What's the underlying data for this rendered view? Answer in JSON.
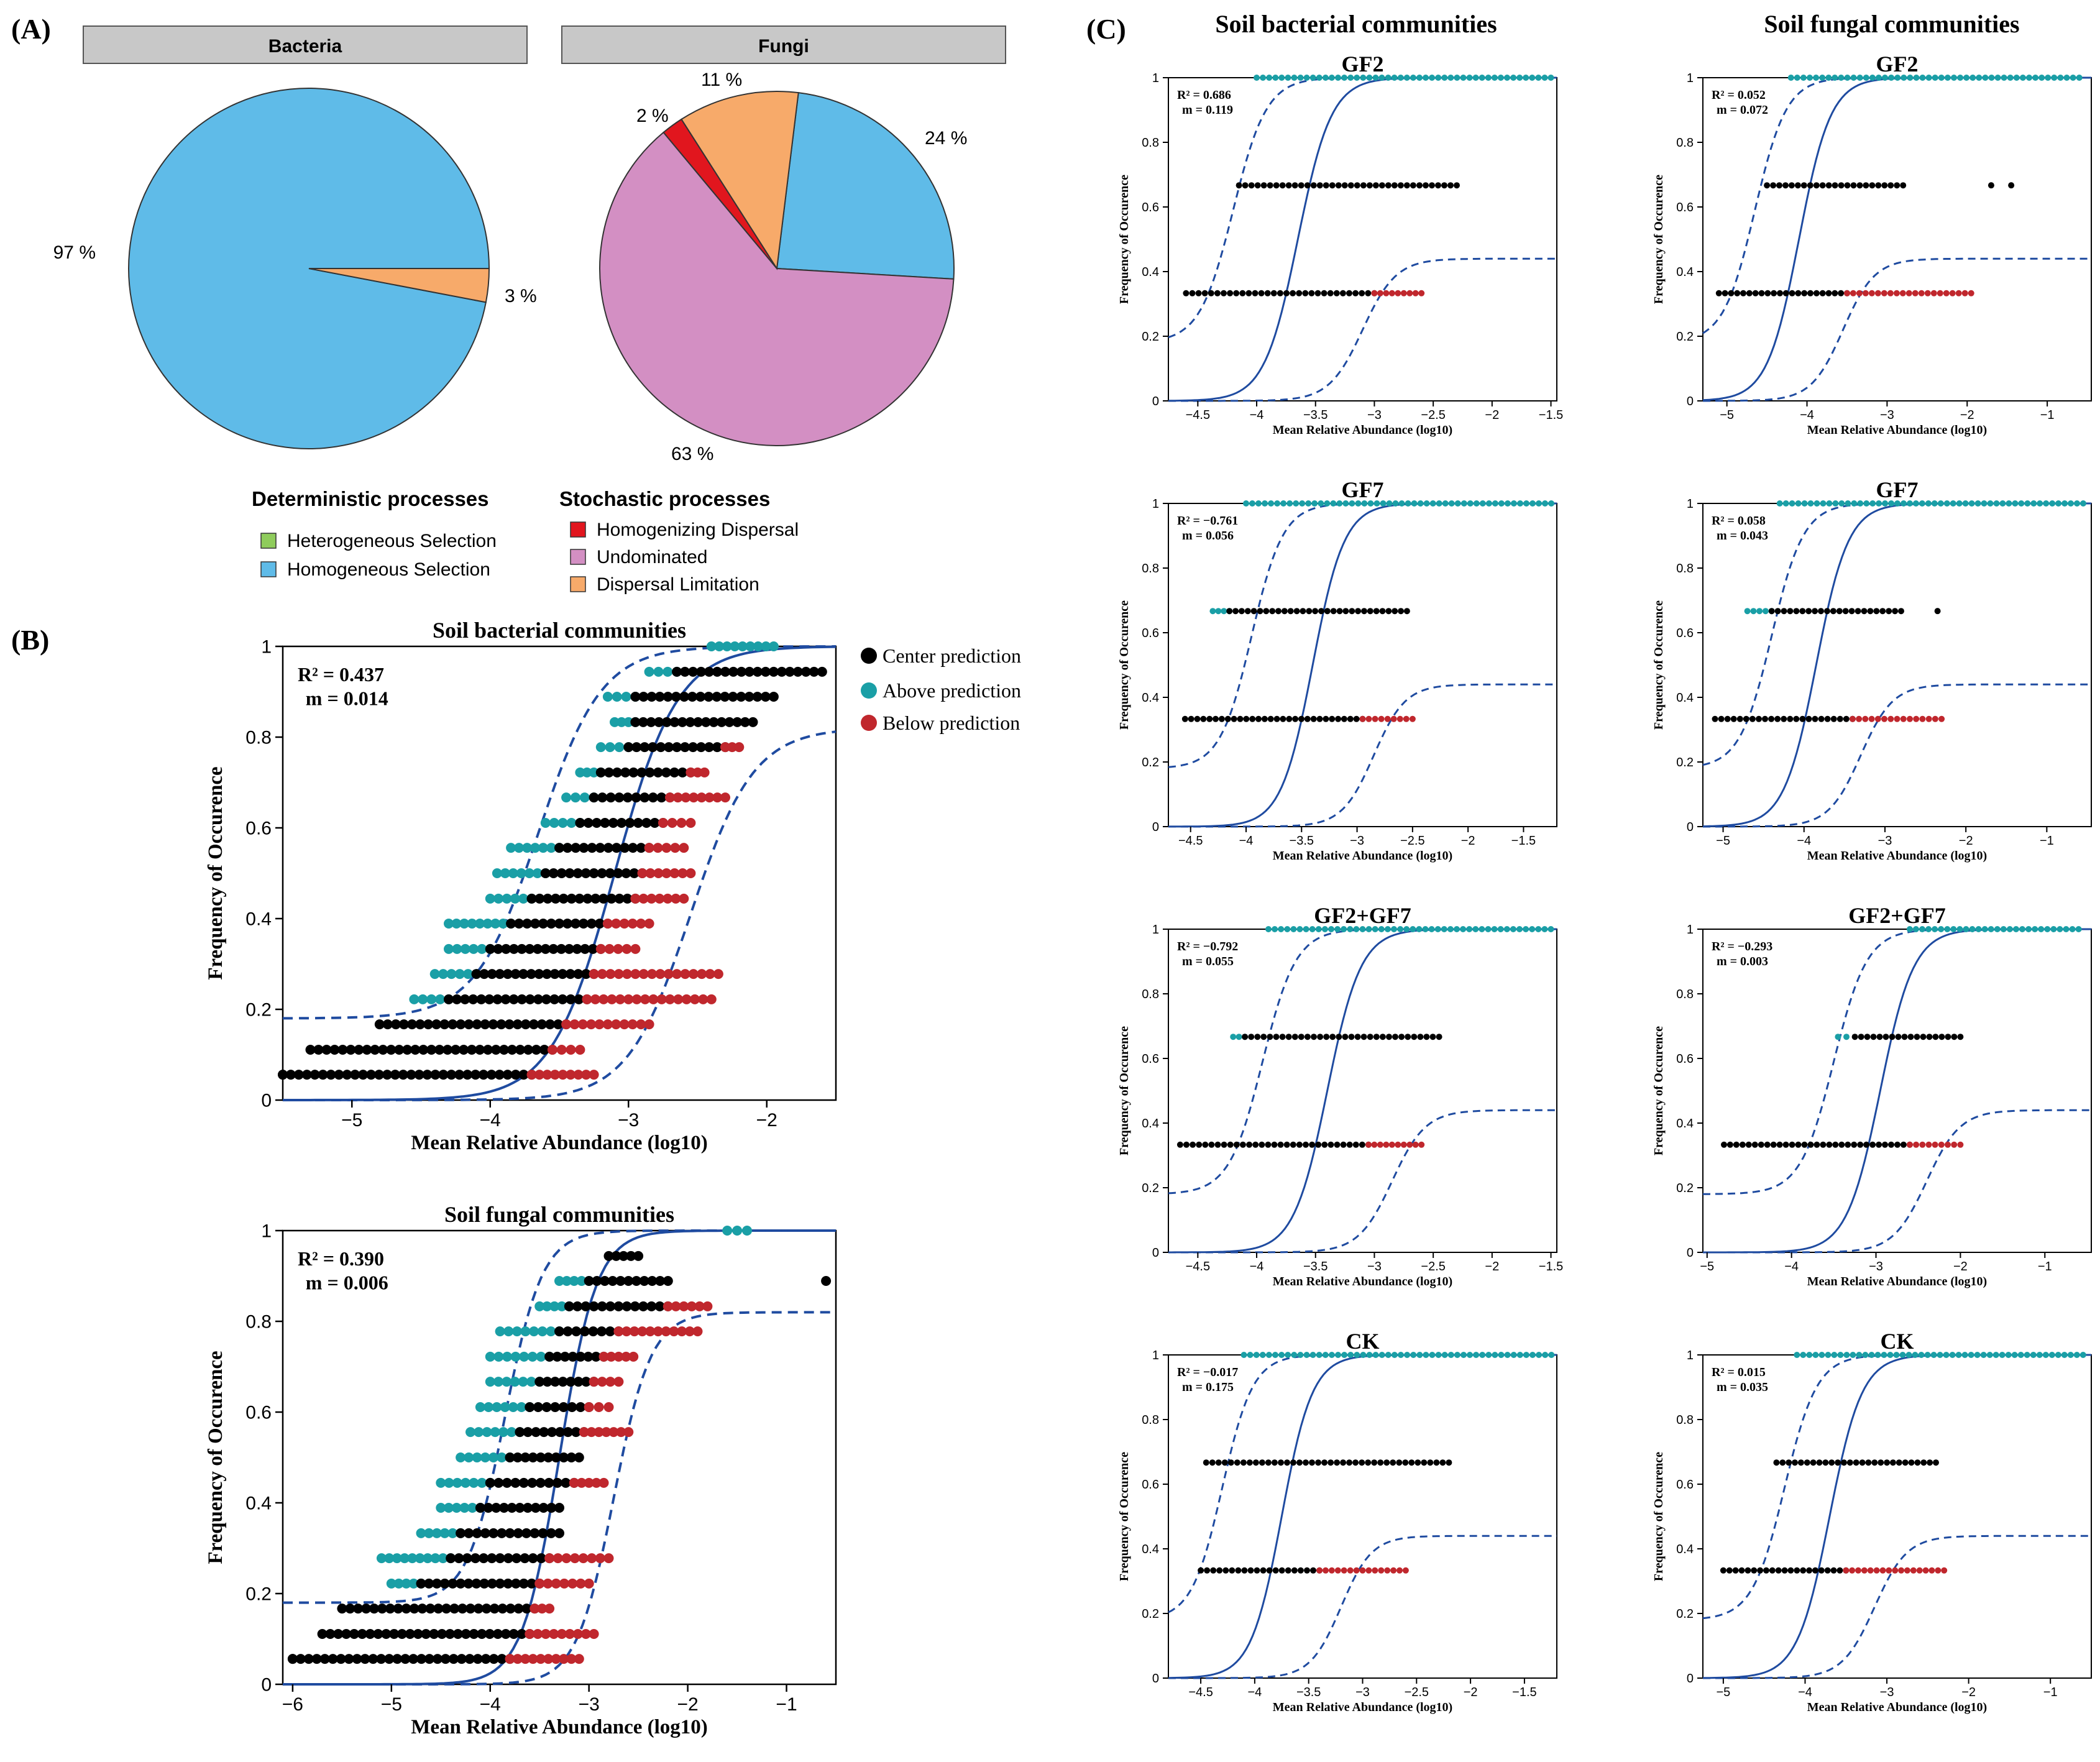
{
  "panel_labels": {
    "a": "(A)",
    "b": "(B)",
    "c": "(C)"
  },
  "pies": {
    "bacteria": {
      "title": "Bacteria",
      "label_97": "97 %",
      "label_3": "3 %"
    },
    "fungi": {
      "title": "Fungi",
      "label_24": "24 %",
      "label_63": "63 %",
      "label_2": "2 %",
      "label_11": "11 %"
    }
  },
  "legend_a": {
    "det_title": "Deterministic processes",
    "sto_title": "Stochastic processes",
    "items": {
      "heterogeneous": "Heterogeneous Selection",
      "homogeneous": "Homogeneous Selection",
      "homogenizing": "Homogenizing Dispersal",
      "undominated": "Undominated",
      "dispersal": "Dispersal Limitation"
    }
  },
  "legend_b": {
    "center": "Center prediction",
    "above": "Above prediction",
    "below": "Below prediction"
  },
  "column_titles": {
    "bacteria": "Soil bacterial communities",
    "fungi": "Soil fungal communities"
  },
  "colors": {
    "homogeneous": "#5fbbe8",
    "heterogeneous": "#8fcc5c",
    "dispersal": "#f7aa6a",
    "undominated": "#d38fc3",
    "homogenizing": "#e1161e",
    "center": "#000000",
    "above": "#1a9fa6",
    "below": "#c0272d",
    "curve": "#1f4ba0",
    "header_gray": "#c8c8c8"
  },
  "chart_data": [
    {
      "id": "pie-bacteria",
      "type": "pie",
      "title": "Bacteria",
      "slices": [
        {
          "label": "Homogeneous Selection",
          "value": 97
        },
        {
          "label": "Dispersal Limitation",
          "value": 3
        }
      ]
    },
    {
      "id": "pie-fungi",
      "type": "pie",
      "title": "Fungi",
      "slices": [
        {
          "label": "Homogeneous Selection",
          "value": 24
        },
        {
          "label": "Undominated",
          "value": 63
        },
        {
          "label": "Homogenizing Dispersal",
          "value": 2
        },
        {
          "label": "Dispersal Limitation",
          "value": 11
        }
      ]
    },
    {
      "id": "b-bac",
      "type": "scatter",
      "title": "Soil bacterial communities",
      "xlabel": "Mean Relative Abundance (log10)",
      "ylabel": "Frequency of Occurence",
      "xlim": [
        -5.5,
        -1.5
      ],
      "ylim": [
        0,
        1
      ],
      "xticks": [
        -5,
        -4,
        -3,
        -2
      ],
      "yticks": [
        0,
        0.2,
        0.4,
        0.6,
        0.8,
        1
      ],
      "r2": "R² = 0.437",
      "m": "m = 0.014",
      "fit": {
        "mid": -3.1,
        "k": 2.0,
        "lower_cap": 0.82
      },
      "bands": [
        {
          "y": 0.056,
          "c": [
            -5.5,
            -3.7
          ],
          "below": [
            -3.7,
            -3.25
          ],
          "sparse": [
            -5.5
          ]
        },
        {
          "y": 0.111,
          "c": [
            -5.3,
            -3.55
          ],
          "below": [
            -3.55,
            -3.35
          ]
        },
        {
          "y": 0.167,
          "c": [
            -4.8,
            -3.45
          ],
          "below": [
            -3.45,
            -2.85
          ]
        },
        {
          "y": 0.222,
          "a": [
            -4.55,
            -4.3
          ],
          "c": [
            -4.3,
            -3.3
          ],
          "below": [
            -3.3,
            -2.4
          ]
        },
        {
          "y": 0.278,
          "a": [
            -4.4,
            -4.1
          ],
          "c": [
            -4.1,
            -3.25
          ],
          "below": [
            -3.25,
            -2.35
          ]
        },
        {
          "y": 0.333,
          "a": [
            -4.3,
            -4.0
          ],
          "c": [
            -4.0,
            -3.2
          ],
          "below": [
            -3.2,
            -2.95
          ]
        },
        {
          "y": 0.389,
          "a": [
            -4.3,
            -3.85
          ],
          "c": [
            -3.85,
            -3.15
          ],
          "below": [
            -3.15,
            -2.85
          ]
        },
        {
          "y": 0.444,
          "a": [
            -4.0,
            -3.7
          ],
          "c": [
            -3.7,
            -2.95
          ],
          "below": [
            -2.95,
            -2.6
          ]
        },
        {
          "y": 0.5,
          "a": [
            -3.95,
            -3.6
          ],
          "c": [
            -3.6,
            -2.9
          ],
          "below": [
            -2.9,
            -2.55
          ]
        },
        {
          "y": 0.556,
          "a": [
            -3.85,
            -3.5
          ],
          "c": [
            -3.5,
            -2.85
          ],
          "below": [
            -2.85,
            -2.6
          ]
        },
        {
          "y": 0.611,
          "a": [
            -3.6,
            -3.35
          ],
          "c": [
            -3.35,
            -2.75
          ],
          "below": [
            -2.75,
            -2.55
          ]
        },
        {
          "y": 0.667,
          "a": [
            -3.45,
            -3.25
          ],
          "c": [
            -3.25,
            -2.7
          ],
          "below": [
            -2.7,
            -2.3
          ]
        },
        {
          "y": 0.722,
          "a": [
            -3.35,
            -3.2
          ],
          "c": [
            -3.2,
            -2.55
          ],
          "below": [
            -2.55,
            -2.45
          ]
        },
        {
          "y": 0.778,
          "a": [
            -3.2,
            -3.0
          ],
          "c": [
            -3.0,
            -2.3
          ],
          "below": [
            -2.3,
            -2.2
          ]
        },
        {
          "y": 0.833,
          "a": [
            -3.1,
            -2.95
          ],
          "c": [
            -2.95,
            -2.1
          ]
        },
        {
          "y": 0.889,
          "a": [
            -3.15,
            -2.95
          ],
          "c": [
            -2.95,
            -1.95
          ]
        },
        {
          "y": 0.944,
          "a": [
            -2.85,
            -2.65
          ],
          "c": [
            -2.65,
            -1.6
          ]
        },
        {
          "y": 1.0,
          "a": [
            -2.4,
            -1.95
          ]
        }
      ]
    },
    {
      "id": "b-fun",
      "type": "scatter",
      "title": "Soil fungal communities",
      "xlabel": "Mean Relative Abundance (log10)",
      "ylabel": "Frequency of Occurence",
      "xlim": [
        -6.1,
        -0.5
      ],
      "ylim": [
        0,
        1
      ],
      "xticks": [
        -6,
        -5,
        -4,
        -3,
        -2,
        -1
      ],
      "yticks": [
        0,
        0.2,
        0.4,
        0.6,
        0.8,
        1
      ],
      "r2": "R² = 0.390",
      "m": "m = 0.006",
      "fit": {
        "mid": -3.3,
        "k": 2.4,
        "lower_cap": 0.82
      },
      "bands": [
        {
          "y": 0.056,
          "c": [
            -6.0,
            -3.8
          ],
          "below": [
            -3.8,
            -3.1
          ],
          "sparse": [
            -6.0
          ]
        },
        {
          "y": 0.111,
          "c": [
            -5.7,
            -3.6
          ],
          "below": [
            -3.6,
            -2.95
          ]
        },
        {
          "y": 0.167,
          "c": [
            -5.5,
            -3.55
          ],
          "below": [
            -3.55,
            -3.4
          ]
        },
        {
          "y": 0.222,
          "a": [
            -5.0,
            -4.7
          ],
          "c": [
            -4.7,
            -3.5
          ],
          "below": [
            -3.5,
            -3.0
          ]
        },
        {
          "y": 0.278,
          "a": [
            -5.1,
            -4.4
          ],
          "c": [
            -4.4,
            -3.4
          ],
          "below": [
            -3.4,
            -2.8
          ]
        },
        {
          "y": 0.333,
          "a": [
            -4.7,
            -4.3
          ],
          "c": [
            -4.3,
            -3.3
          ]
        },
        {
          "y": 0.389,
          "a": [
            -4.5,
            -4.1
          ],
          "c": [
            -4.1,
            -3.3
          ]
        },
        {
          "y": 0.444,
          "a": [
            -4.5,
            -4.0
          ],
          "c": [
            -4.0,
            -3.15
          ],
          "below": [
            -3.15,
            -2.85
          ]
        },
        {
          "y": 0.5,
          "a": [
            -4.3,
            -3.8
          ],
          "c": [
            -3.8,
            -3.1
          ]
        },
        {
          "y": 0.556,
          "a": [
            -4.2,
            -3.7
          ],
          "c": [
            -3.7,
            -3.05
          ],
          "below": [
            -3.05,
            -2.6
          ]
        },
        {
          "y": 0.611,
          "a": [
            -4.1,
            -3.6
          ],
          "c": [
            -3.6,
            -3.0
          ],
          "below": [
            -3.0,
            -2.8
          ]
        },
        {
          "y": 0.667,
          "a": [
            -4.0,
            -3.5
          ],
          "c": [
            -3.5,
            -2.95
          ],
          "below": [
            -2.95,
            -2.7
          ]
        },
        {
          "y": 0.722,
          "a": [
            -4.0,
            -3.4
          ],
          "c": [
            -3.4,
            -2.85
          ],
          "below": [
            -2.85,
            -2.55
          ]
        },
        {
          "y": 0.778,
          "a": [
            -3.9,
            -3.3
          ],
          "c": [
            -3.3,
            -2.7
          ],
          "below": [
            -2.7,
            -1.9
          ]
        },
        {
          "y": 0.833,
          "a": [
            -3.5,
            -3.2
          ],
          "c": [
            -3.2,
            -2.2
          ],
          "below": [
            -2.2,
            -1.8
          ]
        },
        {
          "y": 0.889,
          "a": [
            -3.3,
            -3.0
          ],
          "c": [
            -3.0,
            -2.2
          ],
          "sparse": [
            -0.6
          ]
        },
        {
          "y": 0.944,
          "c": [
            -2.8,
            -2.5
          ]
        },
        {
          "y": 1.0,
          "a": [
            -1.6,
            -1.4
          ]
        }
      ]
    },
    {
      "id": "c-bac-gf2",
      "type": "scatter",
      "title": "GF2",
      "xlabel": "Mean Relative Abundance (log10)",
      "ylabel": "Frequency of Occurence",
      "xlim": [
        -4.75,
        -1.45
      ],
      "ylim": [
        0,
        1
      ],
      "xticks": [
        -4.5,
        -4,
        -3.5,
        -3,
        -2.5,
        -2,
        -1.5
      ],
      "yticks": [
        0,
        0.2,
        0.4,
        0.6,
        0.8,
        1
      ],
      "r2": "R² =  0.686",
      "m": "m = 0.119",
      "fit": {
        "mid": -3.65,
        "k": 3.2,
        "lower_cap": 0.44
      },
      "bands": [
        {
          "y": 0.333,
          "c": [
            -4.6,
            -3.0
          ],
          "below": [
            -3.0,
            -2.6
          ]
        },
        {
          "y": 0.667,
          "c": [
            -4.15,
            -2.3
          ]
        },
        {
          "y": 1.0,
          "a": [
            -4.0,
            -1.5
          ]
        }
      ]
    },
    {
      "id": "c-fun-gf2",
      "type": "scatter",
      "title": "GF2",
      "xlabel": "Mean Relative Abundance (log10)",
      "ylabel": "Frequency of Occurence",
      "xlim": [
        -5.3,
        -0.45
      ],
      "ylim": [
        0,
        1
      ],
      "xticks": [
        -5,
        -4,
        -3,
        -2,
        -1
      ],
      "yticks": [
        0,
        0.2,
        0.4,
        0.6,
        0.8,
        1
      ],
      "r2": "R² = 0.052",
      "m": "m = 0.072",
      "fit": {
        "mid": -4.1,
        "k": 2.3,
        "lower_cap": 0.44
      },
      "bands": [
        {
          "y": 0.333,
          "c": [
            -5.1,
            -3.5
          ],
          "below": [
            -3.5,
            -1.95
          ]
        },
        {
          "y": 0.667,
          "c": [
            -4.5,
            -2.8
          ],
          "sparse": [
            -1.7,
            -1.45
          ]
        },
        {
          "y": 1.0,
          "a": [
            -4.2,
            -0.6
          ]
        }
      ]
    },
    {
      "id": "c-bac-gf7",
      "type": "scatter",
      "title": "GF7",
      "xlabel": "Mean Relative Abundance (log10)",
      "ylabel": "Frequency of Occurence",
      "xlim": [
        -4.7,
        -1.2
      ],
      "ylim": [
        0,
        1
      ],
      "xticks": [
        -4.5,
        -4,
        -3.5,
        -3,
        -2.5,
        -2,
        -1.5
      ],
      "yticks": [
        0,
        0.2,
        0.4,
        0.6,
        0.8,
        1
      ],
      "r2": "R² = −0.761",
      "m": "m = 0.056",
      "fit": {
        "mid": -3.4,
        "k": 3.2,
        "lower_cap": 0.44
      },
      "bands": [
        {
          "y": 0.333,
          "c": [
            -4.55,
            -2.95
          ],
          "below": [
            -2.95,
            -2.5
          ]
        },
        {
          "y": 0.667,
          "a": [
            -4.3,
            -4.15
          ],
          "c": [
            -4.15,
            -2.55
          ]
        },
        {
          "y": 1.0,
          "a": [
            -4.0,
            -1.25
          ]
        }
      ]
    },
    {
      "id": "c-fun-gf7",
      "type": "scatter",
      "title": "GF7",
      "xlabel": "Mean Relative Abundance (log10)",
      "ylabel": "Frequency of Occurence",
      "xlim": [
        -5.25,
        -0.45
      ],
      "ylim": [
        0,
        1
      ],
      "xticks": [
        -5,
        -4,
        -3,
        -2,
        -1
      ],
      "yticks": [
        0,
        0.2,
        0.4,
        0.6,
        0.8,
        1
      ],
      "r2": "R² = 0.058",
      "m": "m = 0.043",
      "fit": {
        "mid": -3.85,
        "k": 2.3,
        "lower_cap": 0.44
      },
      "bands": [
        {
          "y": 0.333,
          "c": [
            -5.1,
            -3.4
          ],
          "below": [
            -3.4,
            -2.3
          ]
        },
        {
          "y": 0.667,
          "a": [
            -4.7,
            -4.4
          ],
          "c": [
            -4.4,
            -2.8
          ],
          "sparse": [
            -2.35
          ]
        },
        {
          "y": 1.0,
          "a": [
            -4.3,
            -0.55
          ]
        }
      ]
    },
    {
      "id": "c-bac-gf27",
      "type": "scatter",
      "title": "GF2+GF7",
      "xlabel": "Mean Relative Abundance (log10)",
      "ylabel": "Frequency of Occurence",
      "xlim": [
        -4.75,
        -1.45
      ],
      "ylim": [
        0,
        1
      ],
      "xticks": [
        -4.5,
        -4,
        -3.5,
        -3,
        -2.5,
        -2,
        -1.5
      ],
      "yticks": [
        0,
        0.2,
        0.4,
        0.6,
        0.8,
        1
      ],
      "r2": "R² = −0.792",
      "m": "m = 0.055",
      "fit": {
        "mid": -3.4,
        "k": 3.2,
        "lower_cap": 0.44
      },
      "bands": [
        {
          "y": 0.333,
          "c": [
            -4.65,
            -3.05
          ],
          "below": [
            -3.05,
            -2.6
          ]
        },
        {
          "y": 0.667,
          "a": [
            -4.2,
            -4.1
          ],
          "c": [
            -4.1,
            -2.45
          ]
        },
        {
          "y": 1.0,
          "a": [
            -3.9,
            -1.5
          ]
        }
      ]
    },
    {
      "id": "c-fun-gf27",
      "type": "scatter",
      "title": "GF2+GF7",
      "xlabel": "Mean Relative Abundance (log10)",
      "ylabel": "Frequency of Occurence",
      "xlim": [
        -5.05,
        -0.45
      ],
      "ylim": [
        0,
        1
      ],
      "xticks": [
        -5,
        -4,
        -3,
        -2,
        -1
      ],
      "yticks": [
        0,
        0.2,
        0.4,
        0.6,
        0.8,
        1
      ],
      "r2": "R² = −0.293",
      "m": "m = 0.003",
      "fit": {
        "mid": -2.95,
        "k": 2.3,
        "lower_cap": 0.44
      },
      "bands": [
        {
          "y": 0.333,
          "c": [
            -4.8,
            -2.6
          ],
          "below": [
            -2.6,
            -2.0
          ]
        },
        {
          "y": 0.667,
          "a": [
            -3.45,
            -3.35
          ],
          "c": [
            -3.25,
            -2.0
          ]
        },
        {
          "y": 1.0,
          "a": [
            -2.6,
            -0.6
          ]
        }
      ]
    },
    {
      "id": "c-bac-ck",
      "type": "scatter",
      "title": "CK",
      "xlabel": "Mean Relative Abundance (log10)",
      "ylabel": "Frequency of Occurence",
      "xlim": [
        -4.8,
        -1.2
      ],
      "ylim": [
        0,
        1
      ],
      "xticks": [
        -4.5,
        -4,
        -3.5,
        -3,
        -2.5,
        -2,
        -1.5
      ],
      "yticks": [
        0,
        0.2,
        0.4,
        0.6,
        0.8,
        1
      ],
      "r2": "R² = −0.017",
      "m": "m = 0.175",
      "fit": {
        "mid": -3.75,
        "k": 3.2,
        "lower_cap": 0.44
      },
      "bands": [
        {
          "y": 0.333,
          "c": [
            -4.5,
            -3.4
          ],
          "below": [
            -3.4,
            -2.6
          ]
        },
        {
          "y": 0.667,
          "c": [
            -4.45,
            -2.2
          ]
        },
        {
          "y": 1.0,
          "a": [
            -4.1,
            -1.25
          ]
        }
      ]
    },
    {
      "id": "c-fun-ck",
      "type": "scatter",
      "title": "CK",
      "xlabel": "Mean Relative Abundance (log10)",
      "ylabel": "Frequency of Occurence",
      "xlim": [
        -5.25,
        -0.5
      ],
      "ylim": [
        0,
        1
      ],
      "xticks": [
        -5,
        -4,
        -3,
        -2,
        -1
      ],
      "yticks": [
        0,
        0.2,
        0.4,
        0.6,
        0.8,
        1
      ],
      "r2": "R² = 0.015",
      "m": "m = 0.035",
      "fit": {
        "mid": -3.7,
        "k": 2.3,
        "lower_cap": 0.44
      },
      "bands": [
        {
          "y": 0.333,
          "c": [
            -5.0,
            -3.5
          ],
          "below": [
            -3.5,
            -2.3
          ]
        },
        {
          "y": 0.667,
          "c": [
            -4.35,
            -2.4
          ]
        },
        {
          "y": 1.0,
          "a": [
            -4.1,
            -0.6
          ]
        }
      ]
    }
  ]
}
